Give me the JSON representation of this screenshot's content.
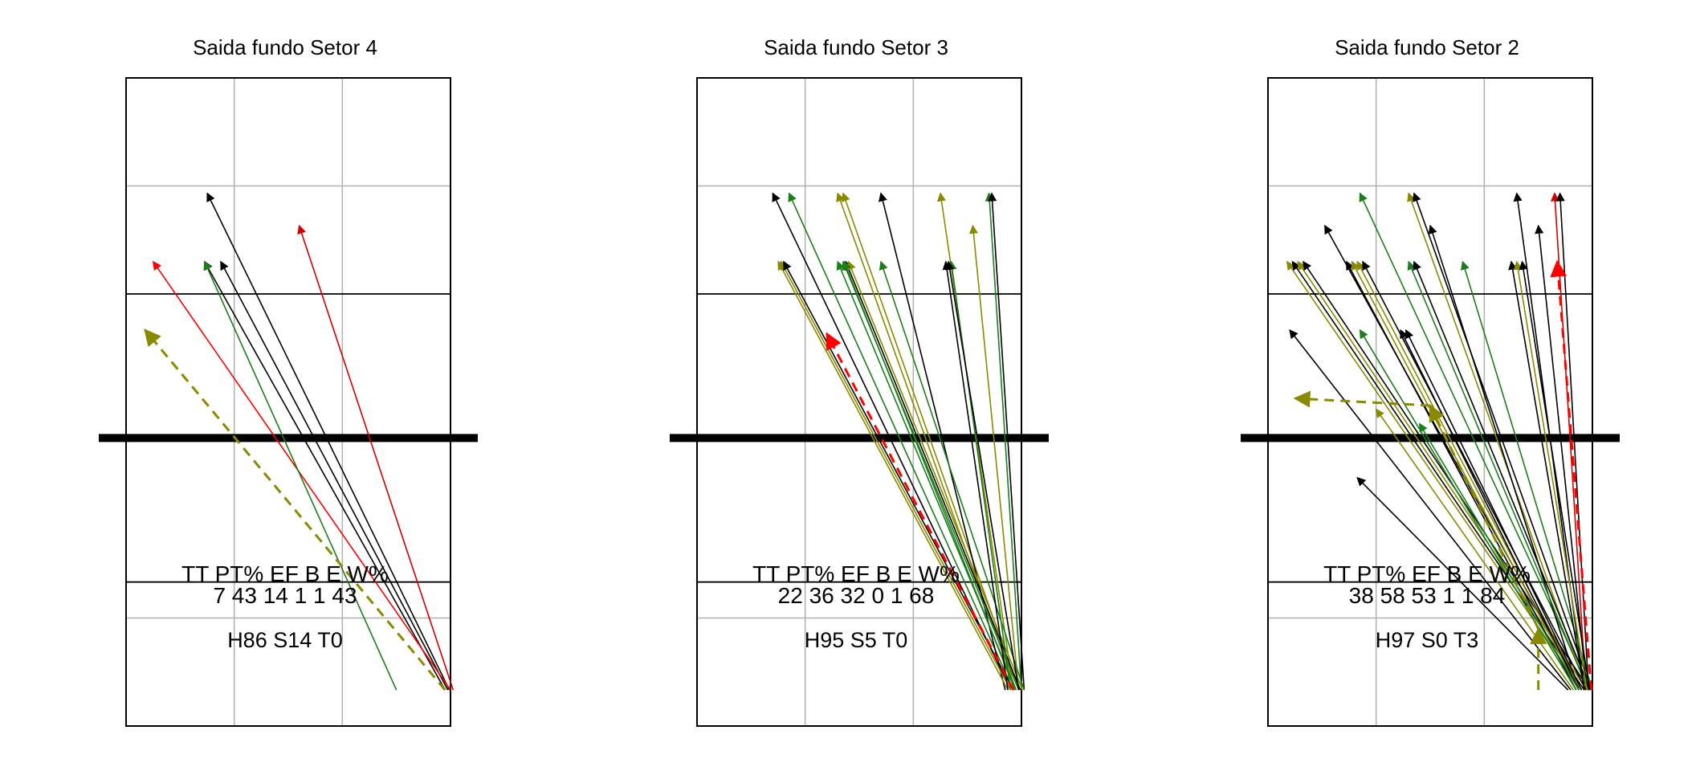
{
  "chart_data": [
    {
      "type": "arrow-diagram",
      "title": "Saida fundo Setor 4",
      "stats_headers": [
        "TT",
        "PT%",
        "EF",
        "B",
        "E",
        "W%"
      ],
      "stats_values": [
        "7",
        "43",
        "14",
        "1",
        "1",
        "43"
      ],
      "footer": "H86 S14 T0",
      "colors": {
        "black": "#000000",
        "red": "#d40000",
        "green": "#1a7f1a",
        "olive": "#8a8a00",
        "brightred": "#ff0000"
      },
      "arrows": [
        {
          "x0": 5.98,
          "y0": 0.5,
          "x1": 1.5,
          "y1": 7.4,
          "color": "black",
          "dashed": false
        },
        {
          "x0": 5.9,
          "y0": 0.5,
          "x1": 1.45,
          "y1": 6.45,
          "color": "black",
          "dashed": false
        },
        {
          "x0": 5.95,
          "y0": 0.5,
          "x1": 1.75,
          "y1": 6.45,
          "color": "black",
          "dashed": false
        },
        {
          "x0": 6.05,
          "y0": 0.5,
          "x1": 3.2,
          "y1": 6.95,
          "color": "red",
          "dashed": false
        },
        {
          "x0": 6.0,
          "y0": 0.5,
          "x1": 0.5,
          "y1": 6.45,
          "color": "brightred",
          "dashed": false
        },
        {
          "x0": 5.0,
          "y0": 0.5,
          "x1": 1.45,
          "y1": 6.45,
          "color": "green",
          "dashed": false
        },
        {
          "x0": 5.9,
          "y0": 0.5,
          "x1": 0.35,
          "y1": 5.5,
          "color": "olive",
          "dashed": true
        }
      ]
    },
    {
      "type": "arrow-diagram",
      "title": "Saida fundo Setor 3",
      "stats_headers": [
        "TT",
        "PT%",
        "EF",
        "B",
        "E",
        "W%"
      ],
      "stats_values": [
        "22",
        "36",
        "32",
        "0",
        "1",
        "68"
      ],
      "footer": "H95 S5 T0",
      "colors": {
        "black": "#000000",
        "red": "#d40000",
        "green": "#1a7f1a",
        "olive": "#8a8a00",
        "brightred": "#ff0000"
      },
      "arrows": [
        {
          "x0": 5.8,
          "y0": 0.5,
          "x1": 1.4,
          "y1": 7.4,
          "color": "black",
          "dashed": false
        },
        {
          "x0": 5.85,
          "y0": 0.5,
          "x1": 1.7,
          "y1": 7.4,
          "color": "green",
          "dashed": false
        },
        {
          "x0": 5.9,
          "y0": 0.5,
          "x1": 2.6,
          "y1": 7.4,
          "color": "olive",
          "dashed": false
        },
        {
          "x0": 5.95,
          "y0": 0.5,
          "x1": 2.7,
          "y1": 7.4,
          "color": "olive",
          "dashed": false
        },
        {
          "x0": 5.7,
          "y0": 0.5,
          "x1": 3.4,
          "y1": 7.4,
          "color": "black",
          "dashed": false
        },
        {
          "x0": 5.85,
          "y0": 0.5,
          "x1": 4.5,
          "y1": 7.4,
          "color": "olive",
          "dashed": false
        },
        {
          "x0": 6.0,
          "y0": 0.5,
          "x1": 5.4,
          "y1": 7.4,
          "color": "green",
          "dashed": false
        },
        {
          "x0": 6.05,
          "y0": 0.5,
          "x1": 5.45,
          "y1": 7.4,
          "color": "black",
          "dashed": false
        },
        {
          "x0": 5.95,
          "y0": 0.5,
          "x1": 5.1,
          "y1": 6.95,
          "color": "olive",
          "dashed": false
        },
        {
          "x0": 5.75,
          "y0": 0.5,
          "x1": 1.5,
          "y1": 6.45,
          "color": "olive",
          "dashed": false
        },
        {
          "x0": 5.8,
          "y0": 0.5,
          "x1": 1.55,
          "y1": 6.45,
          "color": "olive",
          "dashed": false
        },
        {
          "x0": 5.85,
          "y0": 0.5,
          "x1": 1.6,
          "y1": 6.45,
          "color": "black",
          "dashed": false
        },
        {
          "x0": 5.9,
          "y0": 0.5,
          "x1": 2.6,
          "y1": 6.45,
          "color": "green",
          "dashed": false
        },
        {
          "x0": 5.95,
          "y0": 0.5,
          "x1": 2.7,
          "y1": 6.45,
          "color": "green",
          "dashed": false
        },
        {
          "x0": 5.98,
          "y0": 0.5,
          "x1": 2.75,
          "y1": 6.45,
          "color": "black",
          "dashed": false
        },
        {
          "x0": 6.02,
          "y0": 0.5,
          "x1": 2.8,
          "y1": 6.45,
          "color": "olive",
          "dashed": false
        },
        {
          "x0": 5.88,
          "y0": 0.5,
          "x1": 2.72,
          "y1": 6.45,
          "color": "green",
          "dashed": false
        },
        {
          "x0": 6.05,
          "y0": 0.5,
          "x1": 3.4,
          "y1": 6.45,
          "color": "green",
          "dashed": false
        },
        {
          "x0": 5.75,
          "y0": 0.5,
          "x1": 4.6,
          "y1": 6.45,
          "color": "black",
          "dashed": false
        },
        {
          "x0": 5.8,
          "y0": 0.5,
          "x1": 4.7,
          "y1": 6.45,
          "color": "green",
          "dashed": false
        },
        {
          "x0": 5.95,
          "y0": 0.5,
          "x1": 4.65,
          "y1": 6.45,
          "color": "black",
          "dashed": false
        },
        {
          "x0": 5.85,
          "y0": 0.5,
          "x1": 2.4,
          "y1": 5.45,
          "color": "brightred",
          "dashed": true
        }
      ]
    },
    {
      "type": "arrow-diagram",
      "title": "Saida fundo Setor 2",
      "stats_headers": [
        "TT",
        "PT%",
        "EF",
        "B",
        "E",
        "W%"
      ],
      "stats_values": [
        "38",
        "58",
        "53",
        "1",
        "1",
        "84"
      ],
      "footer": "H97 S0 T3",
      "colors": {
        "black": "#000000",
        "red": "#d40000",
        "green": "#1a7f1a",
        "olive": "#8a8a00",
        "brightred": "#ff0000"
      },
      "arrows": [
        {
          "x0": 5.95,
          "y0": 0.5,
          "x1": 1.7,
          "y1": 7.4,
          "color": "green",
          "dashed": false
        },
        {
          "x0": 5.9,
          "y0": 0.5,
          "x1": 2.6,
          "y1": 7.4,
          "color": "olive",
          "dashed": false
        },
        {
          "x0": 5.98,
          "y0": 0.5,
          "x1": 2.7,
          "y1": 7.4,
          "color": "black",
          "dashed": false
        },
        {
          "x0": 5.85,
          "y0": 0.5,
          "x1": 4.6,
          "y1": 7.4,
          "color": "black",
          "dashed": false
        },
        {
          "x0": 5.88,
          "y0": 0.5,
          "x1": 5.3,
          "y1": 7.4,
          "color": "red",
          "dashed": false
        },
        {
          "x0": 5.93,
          "y0": 0.5,
          "x1": 5.4,
          "y1": 7.4,
          "color": "black",
          "dashed": false
        },
        {
          "x0": 5.8,
          "y0": 0.5,
          "x1": 1.05,
          "y1": 6.95,
          "color": "black",
          "dashed": false
        },
        {
          "x0": 5.75,
          "y0": 0.5,
          "x1": 3.0,
          "y1": 6.95,
          "color": "black",
          "dashed": false
        },
        {
          "x0": 5.9,
          "y0": 0.5,
          "x1": 5.0,
          "y1": 6.95,
          "color": "black",
          "dashed": false
        },
        {
          "x0": 5.8,
          "y0": 0.5,
          "x1": 0.35,
          "y1": 6.45,
          "color": "olive",
          "dashed": false
        },
        {
          "x0": 5.85,
          "y0": 0.5,
          "x1": 0.45,
          "y1": 6.45,
          "color": "black",
          "dashed": false
        },
        {
          "x0": 5.9,
          "y0": 0.5,
          "x1": 0.55,
          "y1": 6.45,
          "color": "olive",
          "dashed": false
        },
        {
          "x0": 5.95,
          "y0": 0.5,
          "x1": 0.65,
          "y1": 6.45,
          "color": "black",
          "dashed": false
        },
        {
          "x0": 5.7,
          "y0": 0.5,
          "x1": 1.45,
          "y1": 6.45,
          "color": "black",
          "dashed": false
        },
        {
          "x0": 5.75,
          "y0": 0.5,
          "x1": 1.55,
          "y1": 6.45,
          "color": "olive",
          "dashed": false
        },
        {
          "x0": 5.8,
          "y0": 0.5,
          "x1": 1.65,
          "y1": 6.45,
          "color": "olive",
          "dashed": false
        },
        {
          "x0": 5.88,
          "y0": 0.5,
          "x1": 1.75,
          "y1": 6.45,
          "color": "black",
          "dashed": false
        },
        {
          "x0": 5.92,
          "y0": 0.5,
          "x1": 2.6,
          "y1": 6.45,
          "color": "green",
          "dashed": false
        },
        {
          "x0": 5.96,
          "y0": 0.5,
          "x1": 2.7,
          "y1": 6.45,
          "color": "black",
          "dashed": false
        },
        {
          "x0": 6.0,
          "y0": 0.5,
          "x1": 3.6,
          "y1": 6.45,
          "color": "green",
          "dashed": false
        },
        {
          "x0": 5.85,
          "y0": 0.5,
          "x1": 4.5,
          "y1": 6.45,
          "color": "black",
          "dashed": false
        },
        {
          "x0": 5.9,
          "y0": 0.5,
          "x1": 4.6,
          "y1": 6.45,
          "color": "olive",
          "dashed": false
        },
        {
          "x0": 5.95,
          "y0": 0.5,
          "x1": 4.7,
          "y1": 6.45,
          "color": "black",
          "dashed": false
        },
        {
          "x0": 5.7,
          "y0": 0.5,
          "x1": 1.7,
          "y1": 5.5,
          "color": "green",
          "dashed": false
        },
        {
          "x0": 5.75,
          "y0": 0.5,
          "x1": 2.45,
          "y1": 5.5,
          "color": "black",
          "dashed": false
        },
        {
          "x0": 5.8,
          "y0": 0.5,
          "x1": 2.55,
          "y1": 5.5,
          "color": "black",
          "dashed": false
        },
        {
          "x0": 5.6,
          "y0": 0.5,
          "x1": 0.4,
          "y1": 5.5,
          "color": "black",
          "dashed": false
        },
        {
          "x0": 5.55,
          "y0": 0.5,
          "x1": 1.65,
          "y1": 3.45,
          "color": "black",
          "dashed": false
        },
        {
          "x0": 5.65,
          "y0": 0.5,
          "x1": 2.0,
          "y1": 4.4,
          "color": "olive",
          "dashed": false
        },
        {
          "x0": 5.75,
          "y0": 0.5,
          "x1": 2.8,
          "y1": 4.2,
          "color": "green",
          "dashed": false
        },
        {
          "x0": 5.98,
          "y0": 0.5,
          "x1": 5.35,
          "y1": 6.45,
          "color": "brightred",
          "dashed": true
        },
        {
          "x0": 5.0,
          "y0": 0.5,
          "x1": 5.0,
          "y1": 1.35,
          "color": "olive",
          "dashed": true
        },
        {
          "x0": 3.0,
          "y0": 4.45,
          "x1": 0.5,
          "y1": 4.55,
          "color": "olive",
          "dashed": true
        },
        {
          "x0": 5.0,
          "y0": 1.35,
          "x1": 3.0,
          "y1": 4.45,
          "color": "olive",
          "dashed": true
        }
      ]
    }
  ]
}
